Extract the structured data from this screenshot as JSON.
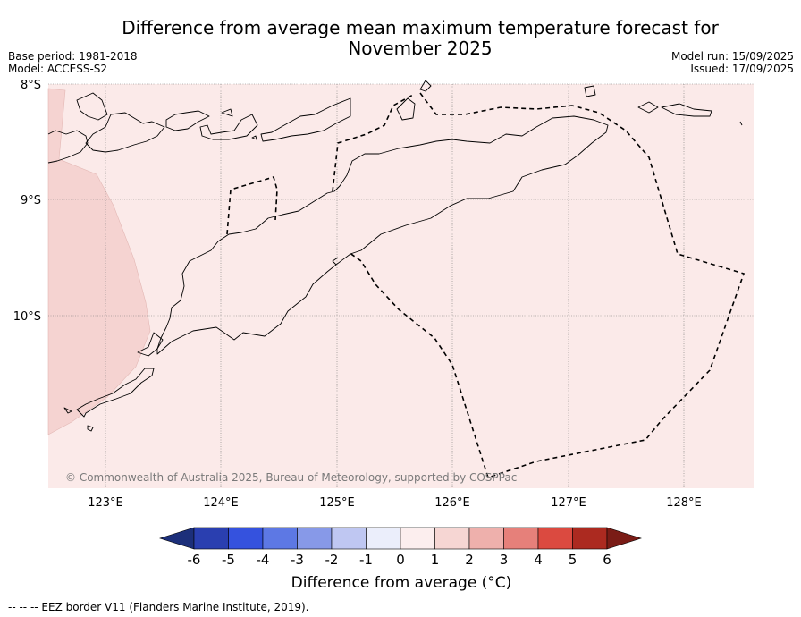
{
  "title": "Difference from average mean maximum temperature forecast for November 2025",
  "meta_left": {
    "base_period": "Base period: 1981-2018",
    "model": "Model: ACCESS-S2"
  },
  "meta_right": {
    "model_run": "Model run: 15/09/2025",
    "issued": "Issued: 17/09/2025"
  },
  "map": {
    "lon_labels": [
      "123°E",
      "124°E",
      "125°E",
      "126°E",
      "127°E",
      "128°E"
    ],
    "lat_labels": [
      "8°S",
      "9°S",
      "10°S"
    ],
    "copyright": "© Commonwealth of Australia 2025, Bureau of Meteorology, supported by COSPPac",
    "colors": {
      "background_class": "#fbeae9",
      "warmer_class": "#f5d3d1",
      "coast": "#000000",
      "grid": "#777777"
    }
  },
  "colorbar": {
    "ticks": [
      "-6",
      "-5",
      "-4",
      "-3",
      "-2",
      "-1",
      "0",
      "1",
      "2",
      "3",
      "4",
      "5",
      "6"
    ],
    "colors": [
      "#1c2f7a",
      "#2a3fb0",
      "#3552de",
      "#5d78e4",
      "#8799e8",
      "#bfc7f2",
      "#ebeefb",
      "#fceeee",
      "#f6d6d3",
      "#eeb0ac",
      "#e6807a",
      "#db4a40",
      "#ac2a20",
      "#7a1c16"
    ],
    "label": "Difference from average (°C)"
  },
  "footnote": "--  --  -- EEZ border V11 (Flanders Marine Institute, 2019)."
}
